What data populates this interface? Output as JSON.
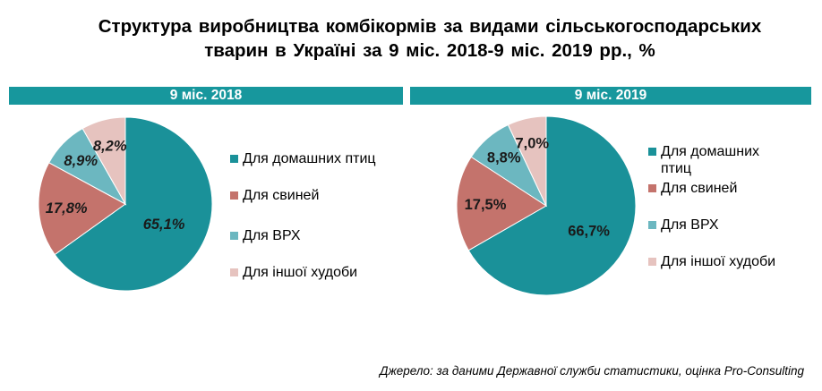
{
  "title_lines": [
    "Структура виробництва комбікормів за видами сільськогосподарських",
    "тварин в Україні за 9 міс. 2018-9 міс. 2019 рр., %"
  ],
  "source": "Джерело: за даними Державної служби статистики, оцінка Pro-Consulting",
  "colors": {
    "band": "#17979d",
    "poultry": "#1a9199",
    "pigs": "#c4736c",
    "cattle": "#6cb7c0",
    "other": "#e6c3bf"
  },
  "chart_data": [
    {
      "type": "pie",
      "title": "9 міс. 2018",
      "categories": [
        "Для домашних птиц",
        "Для свиней",
        "Для ВРХ",
        "Для іншої худоби"
      ],
      "values": [
        65.1,
        17.8,
        8.9,
        8.2
      ],
      "data_labels": [
        "65,1%",
        "17,8%",
        "8,9%",
        "8,2%"
      ],
      "legend_labels": [
        [
          "Для домашних птиц"
        ],
        [
          "Для свиней"
        ],
        [
          "Для ВРХ"
        ],
        [
          "Для іншої худоби"
        ]
      ],
      "legend_position": "right"
    },
    {
      "type": "pie",
      "title": "9 міс. 2019",
      "categories": [
        "Для домашних птиц",
        "Для свиней",
        "Для ВРХ",
        "Для іншої худоби"
      ],
      "values": [
        66.7,
        17.5,
        8.8,
        7.0
      ],
      "data_labels": [
        "66,7%",
        "17,5%",
        "8,8%",
        "7,0%"
      ],
      "legend_labels": [
        [
          "Для домашних",
          "птиц"
        ],
        [
          "Для свиней"
        ],
        [
          "Для ВРХ"
        ],
        [
          "Для іншої худоби"
        ]
      ],
      "legend_position": "right"
    }
  ]
}
